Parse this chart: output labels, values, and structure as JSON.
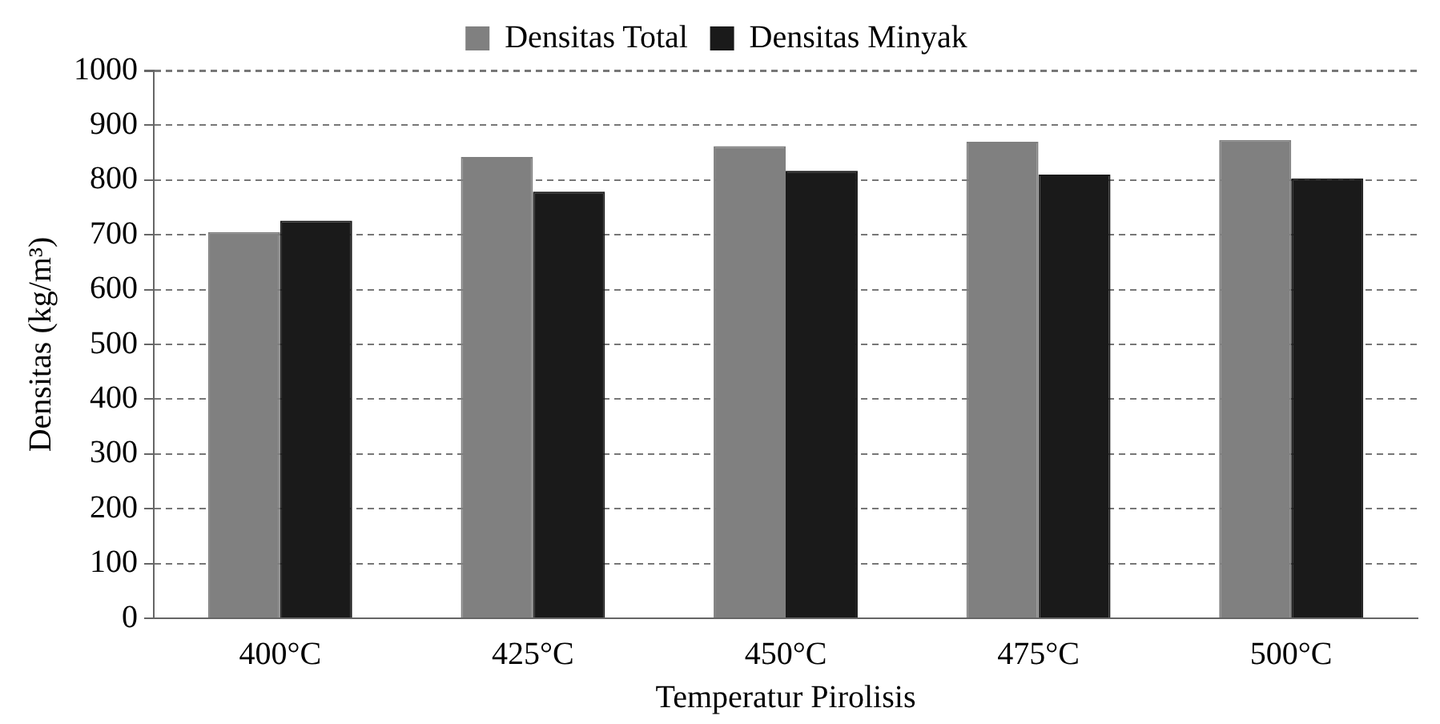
{
  "chart_data": {
    "type": "bar",
    "xlabel": "Temperatur Pirolisis",
    "ylabel": "Densitas (kg/m³)",
    "categories": [
      "400°C",
      "425°C",
      "450°C",
      "475°C",
      "500°C"
    ],
    "series": [
      {
        "name": "Densitas Total",
        "color": "#808080",
        "values": [
          705,
          842,
          862,
          870,
          873
        ]
      },
      {
        "name": "Densitas Minyak",
        "color": "#1a1a1a",
        "values": [
          726,
          779,
          817,
          810,
          803
        ]
      }
    ],
    "ylim": [
      0,
      1000
    ],
    "yticks": [
      0,
      100,
      200,
      300,
      400,
      500,
      600,
      700,
      800,
      900,
      1000
    ],
    "grid": "y",
    "legend": "top"
  }
}
